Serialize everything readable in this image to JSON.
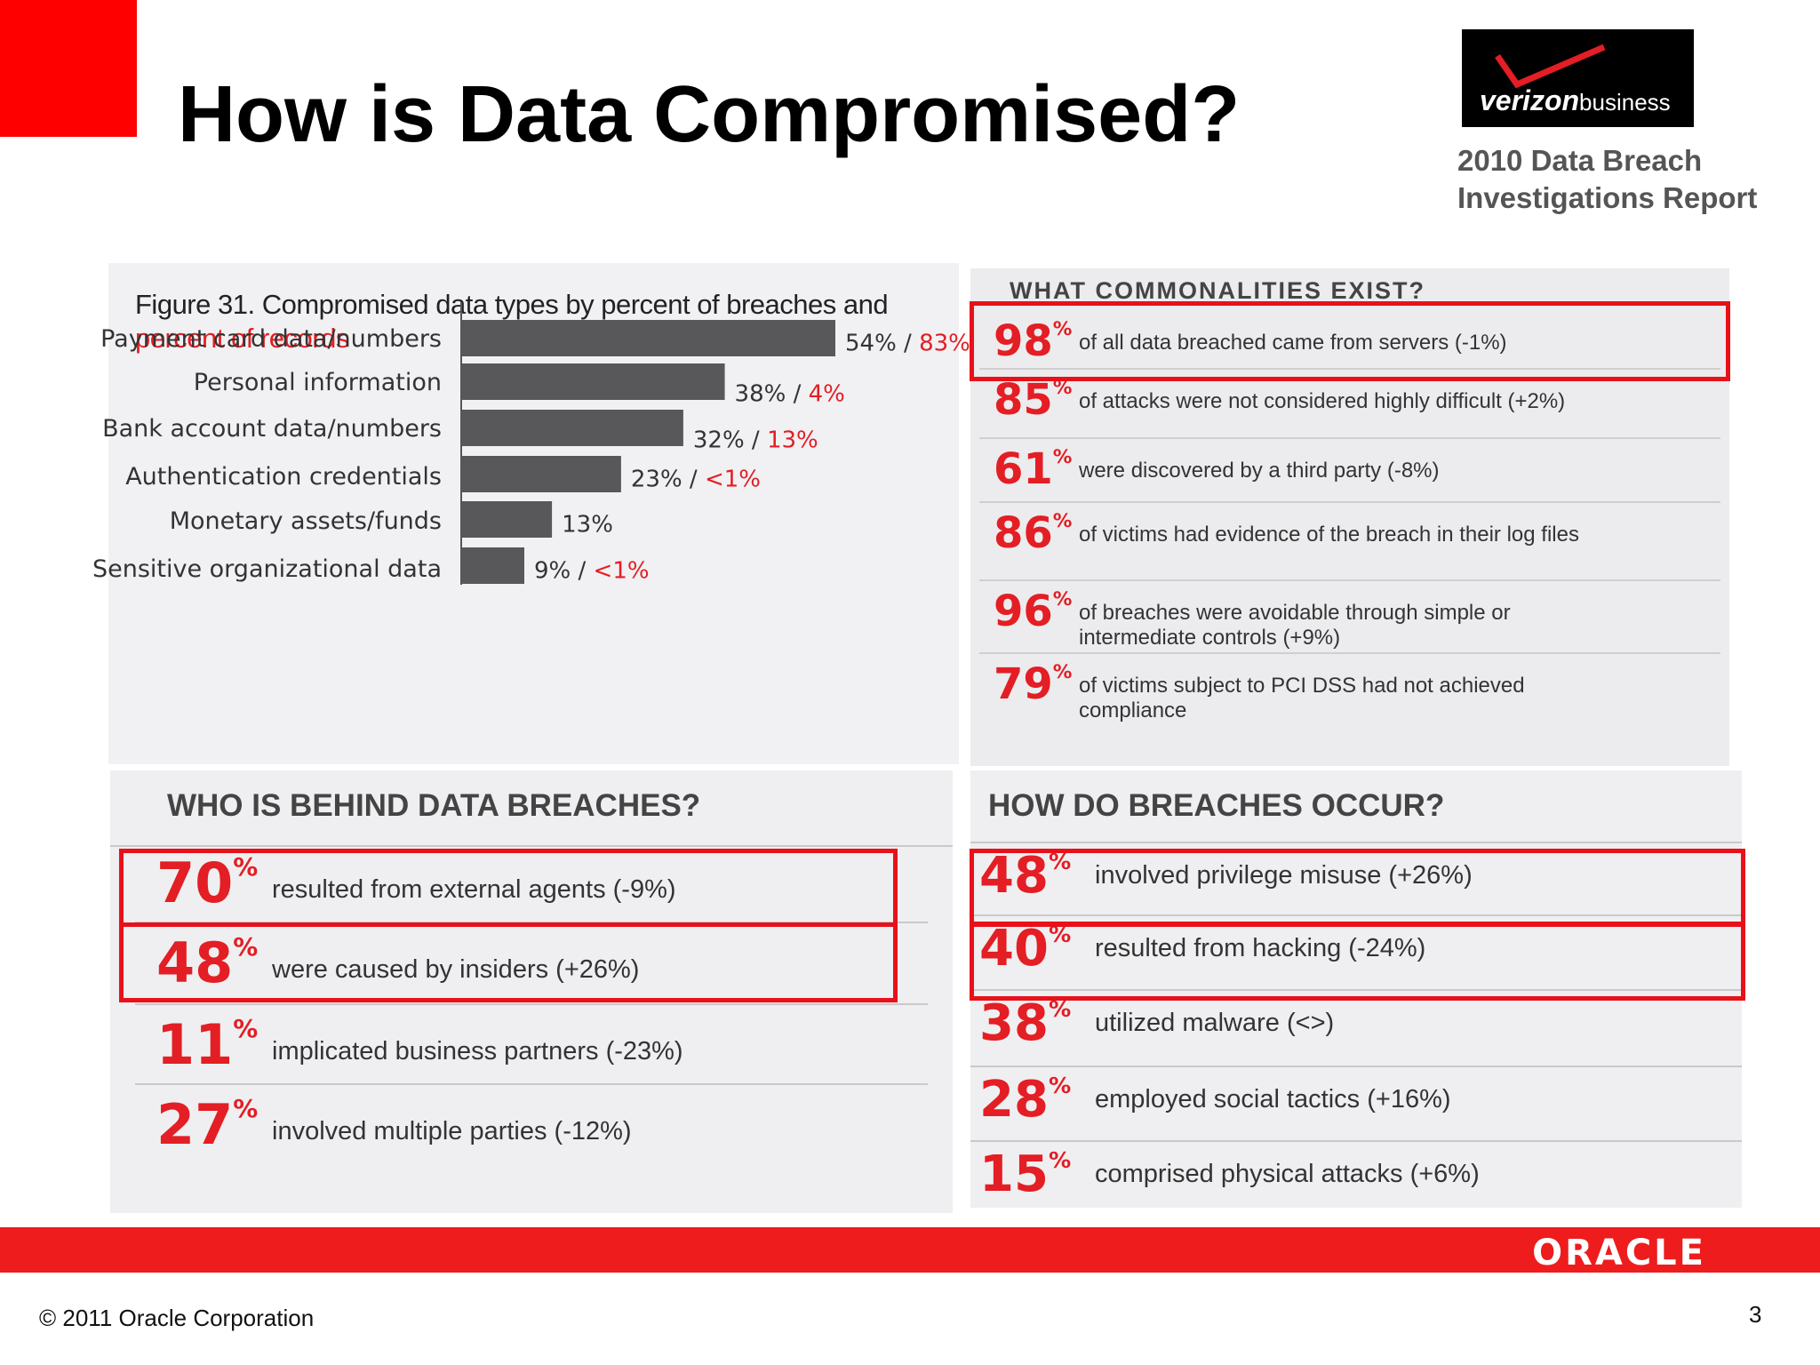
{
  "slide": {
    "title": "How is Data Compromised?",
    "report_label_line1": "2010 Data Breach",
    "report_label_line2": "Investigations Report",
    "logo_text": "verizon",
    "logo_sub": "business",
    "copyright": "© 2011 Oracle Corporation",
    "page_number": "3",
    "oracle_logo": "ORACLE",
    "colors": {
      "accent_red": "#ff0000",
      "bar_gray": "#58585a",
      "figure_red": "#e31e24"
    }
  },
  "figure": {
    "title_part1": "Figure 31. Compromised data types by percent of breaches and",
    "title_part2": "percent of records"
  },
  "chart_data": {
    "type": "bar",
    "orientation": "horizontal",
    "title": "Figure 31. Compromised data types by percent of breaches and percent of records",
    "categories": [
      "Payment card data/numbers",
      "Personal information",
      "Bank account data/numbers",
      "Authentication credentials",
      "Monetary assets/funds",
      "Sensitive organizational data"
    ],
    "series": [
      {
        "name": "percent of breaches",
        "values": [
          54,
          38,
          32,
          23,
          13,
          9
        ]
      }
    ],
    "breach_labels": [
      "54%",
      "38%",
      "32%",
      "23%",
      "13%",
      "9%"
    ],
    "record_labels": [
      "83%",
      "4%",
      "13%",
      "<1%",
      "",
      "<1%"
    ],
    "xlim": [
      0,
      54
    ],
    "grid": false
  },
  "commonalities": {
    "heading": "WHAT COMMONALITIES EXIST?",
    "items": [
      {
        "pct": "98",
        "text": "of all data breached came from servers (-1%)",
        "text2": ""
      },
      {
        "pct": "85",
        "text": "of attacks were not considered highly difficult (+2%)",
        "text2": ""
      },
      {
        "pct": "61",
        "text": "were discovered by a third party (-8%)",
        "text2": ""
      },
      {
        "pct": "86",
        "text": "of victims had evidence of the breach in their log files",
        "text2": ""
      },
      {
        "pct": "96",
        "text": "of breaches were avoidable through simple or",
        "text2": "intermediate controls (+9%)"
      },
      {
        "pct": "79",
        "text": "of victims subject to PCI DSS had not achieved",
        "text2": "compliance"
      }
    ]
  },
  "who": {
    "heading": "WHO IS BEHIND DATA BREACHES?",
    "items": [
      {
        "pct": "70",
        "text": "resulted from external agents (-9%)"
      },
      {
        "pct": "48",
        "text": "were caused by insiders (+26%)"
      },
      {
        "pct": "11",
        "text": "implicated business partners (-23%)"
      },
      {
        "pct": "27",
        "text": "involved multiple parties (-12%)"
      }
    ]
  },
  "how": {
    "heading": "HOW DO BREACHES OCCUR?",
    "items": [
      {
        "pct": "48",
        "text": "involved privilege misuse (+26%)"
      },
      {
        "pct": "40",
        "text": "resulted from hacking (-24%)"
      },
      {
        "pct": "38",
        "text": "utilized malware (<>)"
      },
      {
        "pct": "28",
        "text": "employed social tactics (+16%)"
      },
      {
        "pct": "15",
        "text": "comprised physical attacks (+6%)"
      }
    ]
  },
  "percent_sign": "%"
}
